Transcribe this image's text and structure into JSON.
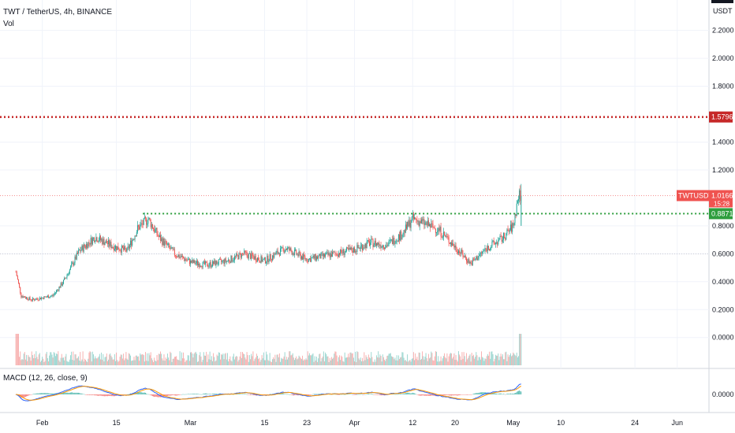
{
  "header": {
    "symbol_line": "TWT / TetherUS, 4h, BINANCE",
    "volume_label": "Vol",
    "macd_label": "MACD (12, 26, close, 9)",
    "unit": "USDT"
  },
  "chart_data": [
    {
      "type": "candlestick",
      "title": "TWT / TetherUS, 4h, BINANCE",
      "y_ticks": [
        "2.2000",
        "2.0000",
        "1.8000",
        "1.4000",
        "1.2000",
        "0.8000",
        "0.6000",
        "0.4000",
        "0.2000",
        "0.0000"
      ],
      "x_ticks": [
        "Feb",
        "15",
        "Mar",
        "15",
        "23",
        "Apr",
        "12",
        "20",
        "May",
        "10",
        "24",
        "Jun"
      ],
      "ylim": [
        -0.12,
        2.35
      ],
      "price_points": [
        {
          "date": "2021-01-27",
          "price": 0.47
        },
        {
          "date": "2021-01-28",
          "price": 0.3
        },
        {
          "date": "2021-01-30",
          "price": 0.27
        },
        {
          "date": "2021-02-03",
          "price": 0.3
        },
        {
          "date": "2021-02-05",
          "price": 0.4
        },
        {
          "date": "2021-02-08",
          "price": 0.62
        },
        {
          "date": "2021-02-11",
          "price": 0.72
        },
        {
          "date": "2021-02-14",
          "price": 0.66
        },
        {
          "date": "2021-02-17",
          "price": 0.62
        },
        {
          "date": "2021-02-19",
          "price": 0.78
        },
        {
          "date": "2021-02-21",
          "price": 0.85
        },
        {
          "date": "2021-02-23",
          "price": 0.72
        },
        {
          "date": "2021-02-26",
          "price": 0.6
        },
        {
          "date": "2021-03-01",
          "price": 0.54
        },
        {
          "date": "2021-03-04",
          "price": 0.52
        },
        {
          "date": "2021-03-08",
          "price": 0.55
        },
        {
          "date": "2021-03-11",
          "price": 0.6
        },
        {
          "date": "2021-03-15",
          "price": 0.55
        },
        {
          "date": "2021-03-19",
          "price": 0.64
        },
        {
          "date": "2021-03-23",
          "price": 0.56
        },
        {
          "date": "2021-03-27",
          "price": 0.59
        },
        {
          "date": "2021-04-01",
          "price": 0.63
        },
        {
          "date": "2021-04-04",
          "price": 0.68
        },
        {
          "date": "2021-04-07",
          "price": 0.66
        },
        {
          "date": "2021-04-10",
          "price": 0.74
        },
        {
          "date": "2021-04-12",
          "price": 0.85
        },
        {
          "date": "2021-04-14",
          "price": 0.82
        },
        {
          "date": "2021-04-17",
          "price": 0.77
        },
        {
          "date": "2021-04-20",
          "price": 0.65
        },
        {
          "date": "2021-04-23",
          "price": 0.53
        },
        {
          "date": "2021-04-26",
          "price": 0.64
        },
        {
          "date": "2021-04-29",
          "price": 0.71
        },
        {
          "date": "2021-05-01",
          "price": 0.8
        },
        {
          "date": "2021-05-02",
          "price": 1.0166
        }
      ],
      "levels": [
        {
          "label": "1.5796",
          "price": 1.5796,
          "color": "#c62828"
        },
        {
          "label": "0.8871",
          "price": 0.8871,
          "color": "#2e9e3e"
        }
      ],
      "current": {
        "symbol": "TWTUSDT",
        "price": "1.0166",
        "countdown": "15:28",
        "price_value": 1.0166
      },
      "colors": {
        "up": "#26a69a",
        "down": "#ef5350",
        "grid": "#f0f3fa",
        "text": "#131722"
      }
    },
    {
      "type": "line",
      "title": "MACD (12, 26, close, 9)",
      "y_ticks": [
        "0.0000"
      ],
      "series": [
        {
          "name": "MACD",
          "color": "#2962ff"
        },
        {
          "name": "Signal",
          "color": "#ff9800"
        }
      ]
    }
  ]
}
